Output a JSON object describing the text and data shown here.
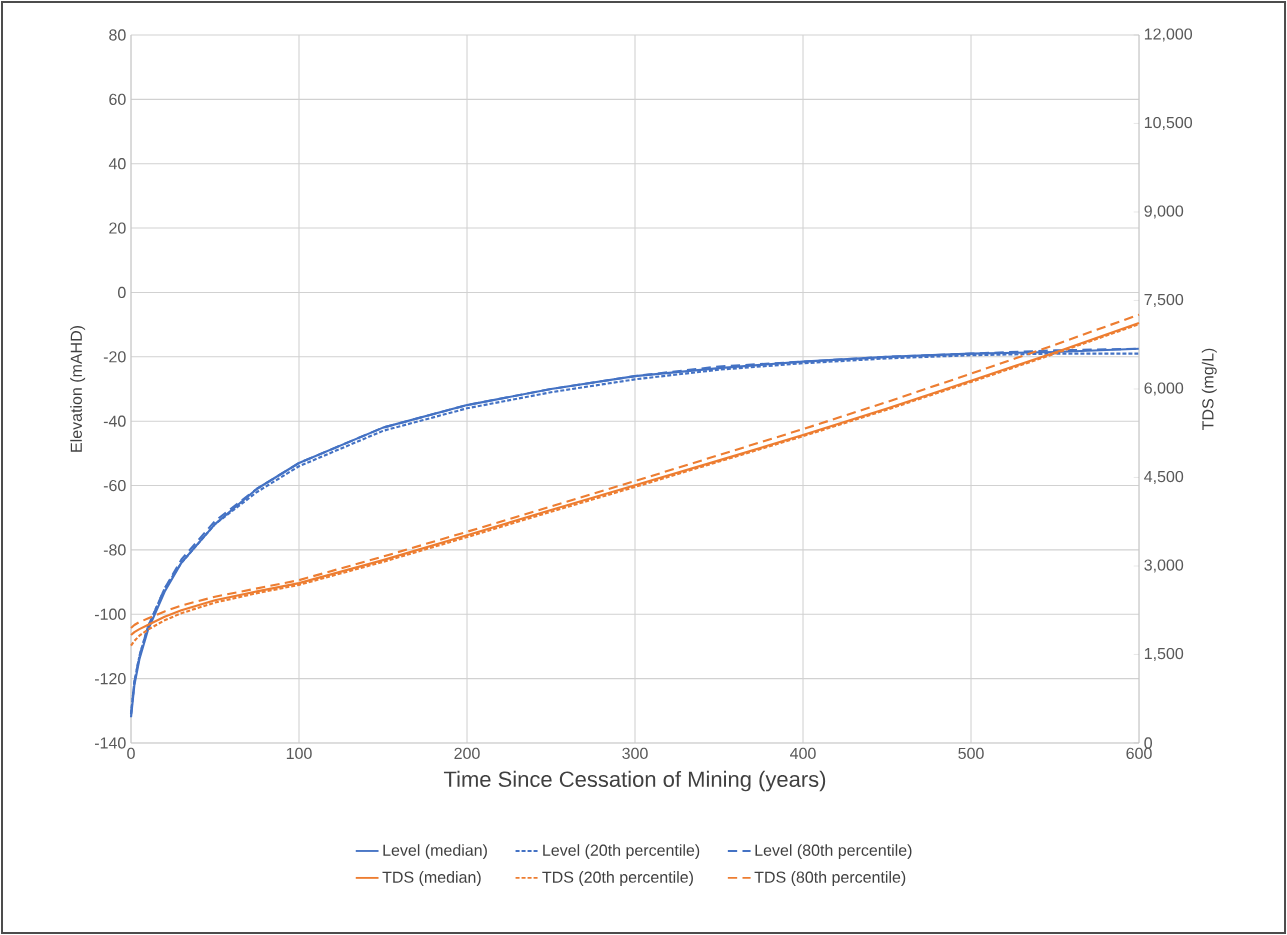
{
  "chart_data": {
    "type": "line",
    "xlabel": "Time Since Cessation of Mining (years)",
    "ylabel": "Elevation (mAHD)",
    "y2label": "TDS (mg/L)",
    "x": [
      0,
      2,
      5,
      10,
      20,
      30,
      50,
      75,
      100,
      150,
      200,
      250,
      300,
      350,
      400,
      450,
      500,
      550,
      600
    ],
    "xlim": [
      0,
      600
    ],
    "xticks": [
      0,
      100,
      200,
      300,
      400,
      500,
      600
    ],
    "ylim": [
      -140,
      80
    ],
    "yticks": [
      -140,
      -120,
      -100,
      -80,
      -60,
      -40,
      -20,
      0,
      20,
      40,
      60,
      80
    ],
    "y2lim": [
      0,
      12000
    ],
    "y2ticks": [
      {
        "value": 0,
        "label": "0"
      },
      {
        "value": 1500,
        "label": "1,500"
      },
      {
        "value": 3000,
        "label": "3,000"
      },
      {
        "value": 4500,
        "label": "4,500"
      },
      {
        "value": 6000,
        "label": "6,000"
      },
      {
        "value": 7500,
        "label": "7,500"
      },
      {
        "value": 9000,
        "label": "9,000"
      },
      {
        "value": 10500,
        "label": "10,500"
      },
      {
        "value": 12000,
        "label": "12,000"
      }
    ],
    "grid": true,
    "legend": "bottom",
    "series": [
      {
        "name": "Level (median)",
        "color": "#4472c4",
        "line_style": "solid",
        "values": [
          -132,
          -122,
          -114,
          -105,
          -93,
          -84,
          -72,
          -61,
          -53,
          -42,
          -35,
          -30,
          -26,
          -23.5,
          -21.5,
          -20,
          -19,
          -18.5,
          -17.5
        ]
      },
      {
        "name": "Level (20th percentile)",
        "color": "#4472c4",
        "line_style": "dotted",
        "values": [
          -131,
          -121,
          -113,
          -104,
          -92,
          -84,
          -72,
          -62,
          -54,
          -43,
          -36,
          -31,
          -27,
          -24,
          -22,
          -20.5,
          -19.5,
          -19,
          -19
        ]
      },
      {
        "name": "Level (80th percentile)",
        "color": "#4472c4",
        "line_style": "dashed",
        "values": [
          -131,
          -121,
          -113,
          -104,
          -92,
          -83,
          -71,
          -61,
          -53,
          -42,
          -35,
          -30,
          -26,
          -23,
          -21.5,
          -20,
          -19,
          -18,
          -17.5
        ]
      },
      {
        "name": "TDS (median)",
        "color": "#ed7d31",
        "line_style": "solid",
        "axis": "y2",
        "values": [
          1830,
          1880,
          1930,
          2000,
          2140,
          2250,
          2420,
          2570,
          2710,
          3100,
          3520,
          3950,
          4370,
          4790,
          5220,
          5670,
          6140,
          6620,
          7120
        ]
      },
      {
        "name": "TDS (20th percentile)",
        "color": "#ed7d31",
        "line_style": "dotted",
        "axis": "y2",
        "values": [
          1650,
          1730,
          1820,
          1920,
          2080,
          2200,
          2380,
          2540,
          2680,
          3070,
          3490,
          3920,
          4340,
          4770,
          5200,
          5650,
          6120,
          6600,
          7100
        ]
      },
      {
        "name": "TDS (80th percentile)",
        "color": "#ed7d31",
        "line_style": "dashed",
        "axis": "y2",
        "values": [
          1950,
          2000,
          2050,
          2110,
          2230,
          2330,
          2480,
          2620,
          2760,
          3160,
          3580,
          4010,
          4440,
          4880,
          5320,
          5780,
          6260,
          6750,
          7260
        ]
      }
    ]
  }
}
